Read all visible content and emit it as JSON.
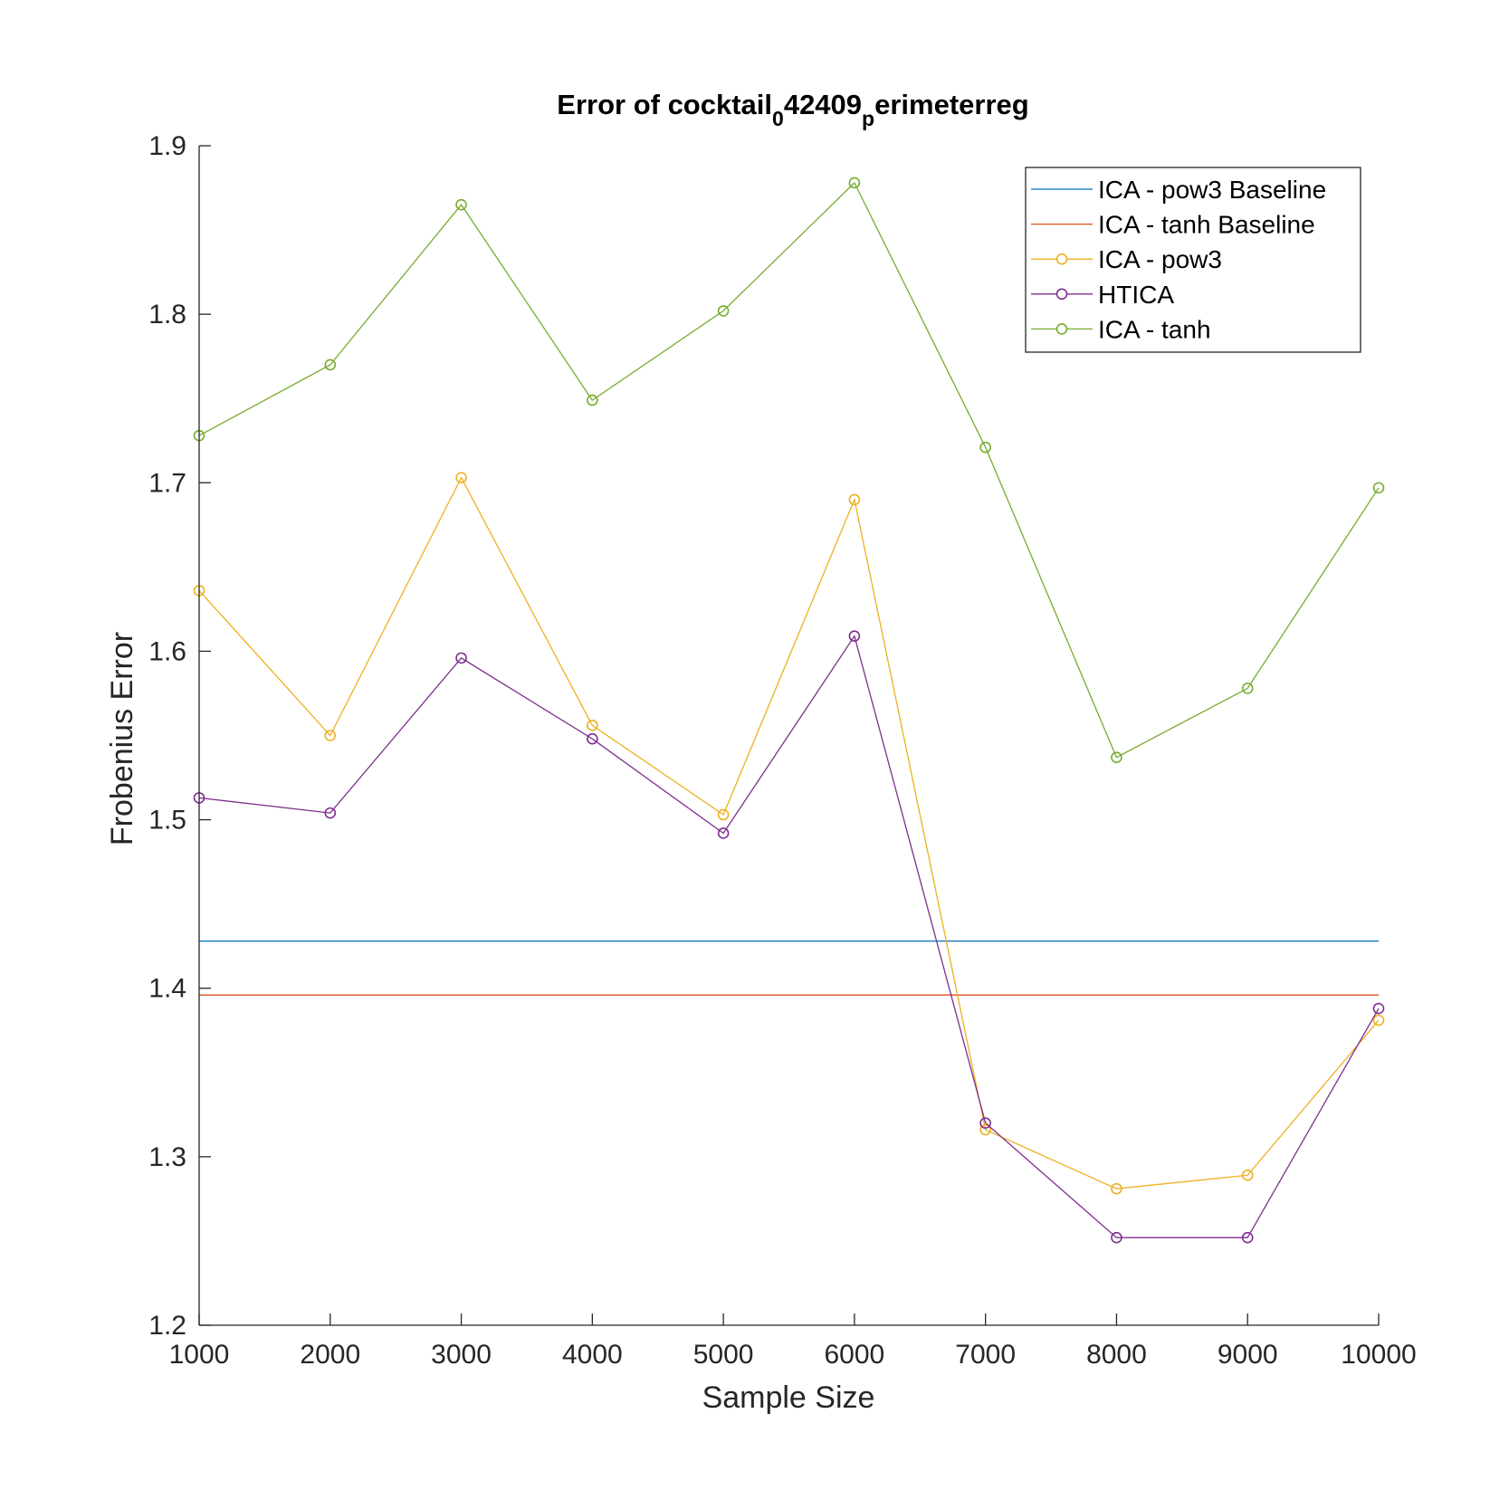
{
  "chart_data": {
    "type": "line",
    "title": {
      "main": "Error of cocktail",
      "sub1": "0",
      "mid": "42409",
      "sub2": "p",
      "end": "erimeterreg"
    },
    "xlabel": "Sample Size",
    "ylabel": "Frobenius Error",
    "xlim": [
      1000,
      10000
    ],
    "ylim": [
      1.2,
      1.9
    ],
    "x_ticks": [
      1000,
      2000,
      3000,
      4000,
      5000,
      6000,
      7000,
      8000,
      9000,
      10000
    ],
    "y_ticks": [
      1.2,
      1.3,
      1.4,
      1.5,
      1.6,
      1.7,
      1.8,
      1.9
    ],
    "x_tick_labels": [
      "1000",
      "2000",
      "3000",
      "4000",
      "5000",
      "6000",
      "7000",
      "8000",
      "9000",
      "10000"
    ],
    "y_tick_labels": [
      "1.2",
      "1.3",
      "1.4",
      "1.5",
      "1.6",
      "1.7",
      "1.8",
      "1.9"
    ],
    "x": [
      1000,
      2000,
      3000,
      4000,
      5000,
      6000,
      7000,
      8000,
      9000,
      10000
    ],
    "legend_position": "top-right",
    "series": [
      {
        "name": "ICA - pow3 Baseline",
        "color": "#0072BD",
        "marker": false,
        "values": [
          1.428,
          1.428,
          1.428,
          1.428,
          1.428,
          1.428,
          1.428,
          1.428,
          1.428,
          1.428
        ]
      },
      {
        "name": "ICA - tanh Baseline",
        "color": "#D95319",
        "marker": false,
        "values": [
          1.396,
          1.396,
          1.396,
          1.396,
          1.396,
          1.396,
          1.396,
          1.396,
          1.396,
          1.396
        ]
      },
      {
        "name": "ICA - pow3",
        "color": "#EDB120",
        "marker": true,
        "values": [
          1.636,
          1.55,
          1.703,
          1.556,
          1.503,
          1.69,
          1.316,
          1.281,
          1.289,
          1.381
        ]
      },
      {
        "name": "HTICA",
        "color": "#7E2F8E",
        "marker": true,
        "values": [
          1.513,
          1.504,
          1.596,
          1.548,
          1.492,
          1.609,
          1.32,
          1.252,
          1.252,
          1.388
        ]
      },
      {
        "name": "ICA - tanh",
        "color": "#77AC30",
        "marker": true,
        "values": [
          1.728,
          1.77,
          1.865,
          1.749,
          1.802,
          1.878,
          1.721,
          1.537,
          1.578,
          1.697
        ]
      }
    ]
  }
}
